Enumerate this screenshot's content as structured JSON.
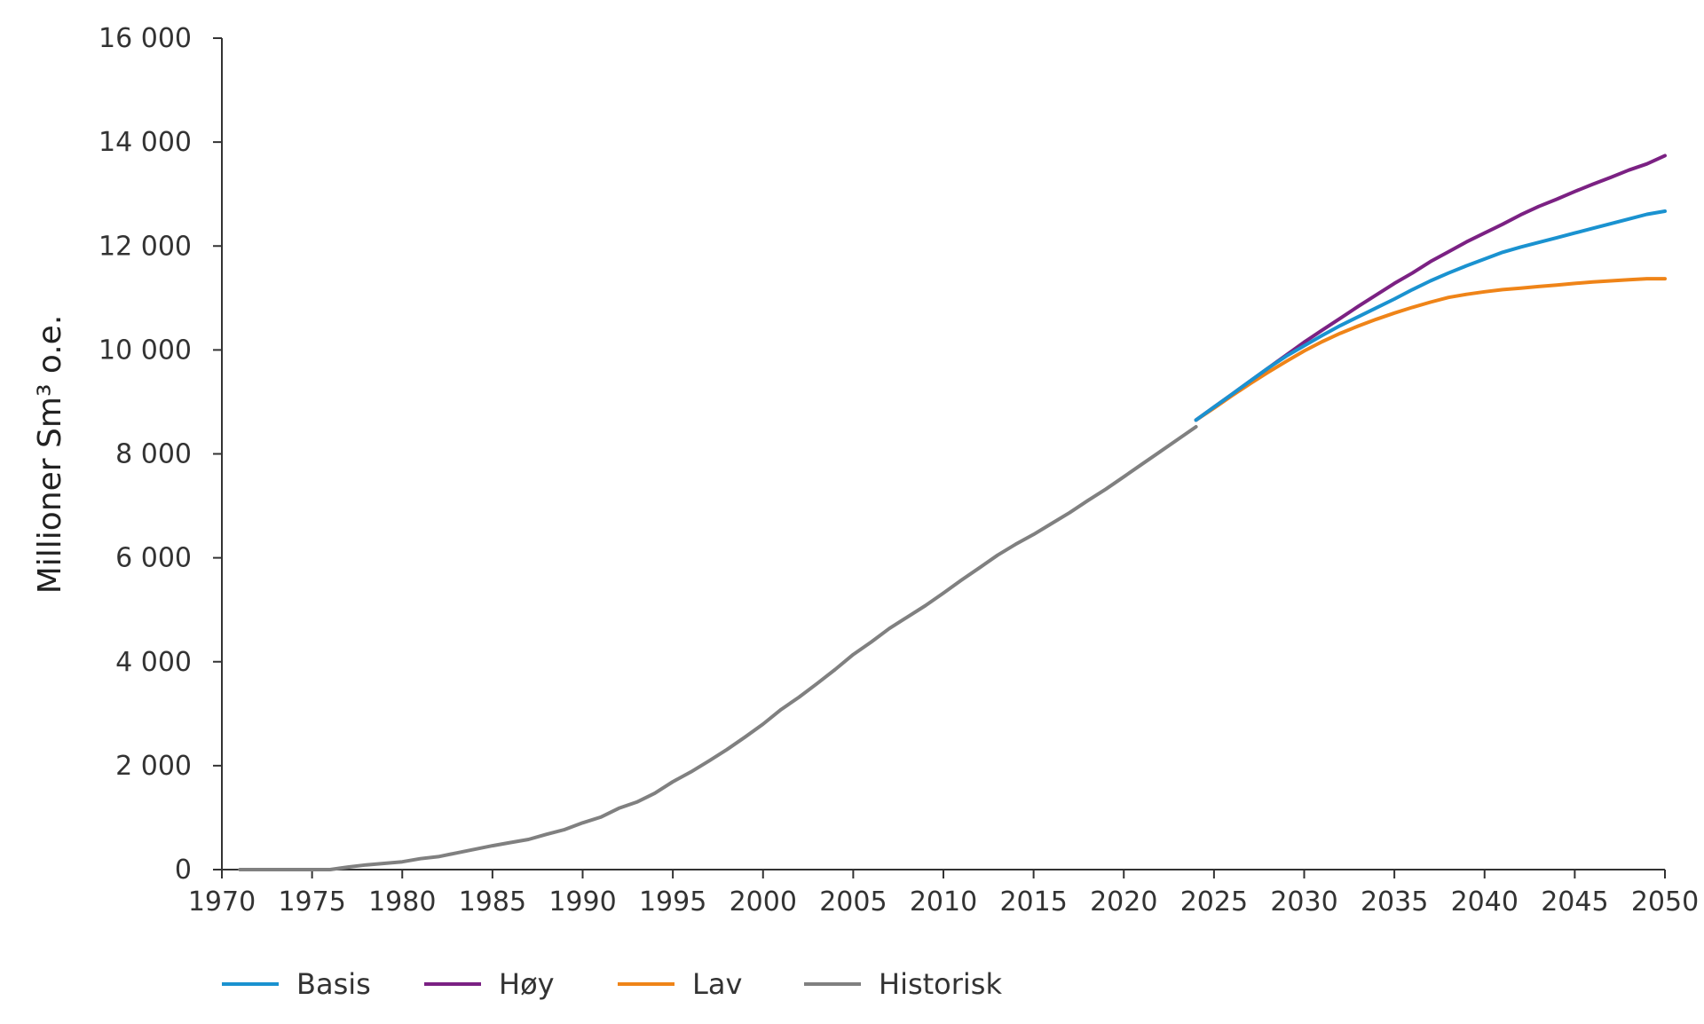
{
  "chart_data": {
    "type": "line",
    "title": "",
    "xlabel": "",
    "ylabel": "Millioner Sm³ o.e.",
    "xlim": [
      1970,
      2050
    ],
    "ylim": [
      0,
      16000
    ],
    "x_ticks": [
      1970,
      1975,
      1980,
      1985,
      1990,
      1995,
      2000,
      2005,
      2010,
      2015,
      2020,
      2025,
      2030,
      2035,
      2040,
      2045,
      2050
    ],
    "y_ticks": [
      0,
      2000,
      4000,
      6000,
      8000,
      10000,
      12000,
      14000,
      16000
    ],
    "y_tick_labels": [
      "0",
      "2 000",
      "4 000",
      "6 000",
      "8 000",
      "10 000",
      "12 000",
      "14 000",
      "16 000"
    ],
    "grid": false,
    "legend_position": "bottom",
    "series": [
      {
        "name": "Historisk",
        "color": "#808080",
        "x": [
          1971,
          1972,
          1973,
          1974,
          1975,
          1976,
          1977,
          1978,
          1979,
          1980,
          1981,
          1982,
          1983,
          1984,
          1985,
          1986,
          1987,
          1988,
          1989,
          1990,
          1991,
          1992,
          1993,
          1994,
          1995,
          1996,
          1997,
          1998,
          1999,
          2000,
          2001,
          2002,
          2003,
          2004,
          2005,
          2006,
          2007,
          2008,
          2009,
          2010,
          2011,
          2012,
          2013,
          2014,
          2015,
          2016,
          2017,
          2018,
          2019,
          2020,
          2021,
          2022,
          2023,
          2024
        ],
        "values": [
          0,
          0,
          0,
          0,
          0,
          0,
          50,
          90,
          120,
          150,
          210,
          250,
          320,
          390,
          460,
          520,
          580,
          680,
          770,
          900,
          1010,
          1180,
          1300,
          1470,
          1690,
          1880,
          2090,
          2310,
          2550,
          2800,
          3080,
          3320,
          3580,
          3850,
          4140,
          4380,
          4640,
          4860,
          5080,
          5320,
          5570,
          5810,
          6050,
          6260,
          6450,
          6660,
          6870,
          7100,
          7320,
          7560,
          7800,
          8040,
          8280,
          8520
        ]
      },
      {
        "name": "Basis",
        "color": "#1a92d0",
        "x": [
          2024,
          2025,
          2026,
          2027,
          2028,
          2029,
          2030,
          2031,
          2032,
          2033,
          2034,
          2035,
          2036,
          2037,
          2038,
          2039,
          2040,
          2041,
          2042,
          2043,
          2044,
          2045,
          2046,
          2047,
          2048,
          2049,
          2050
        ],
        "values": [
          8650,
          8900,
          9150,
          9400,
          9650,
          9880,
          10080,
          10280,
          10470,
          10640,
          10810,
          10980,
          11160,
          11330,
          11480,
          11620,
          11750,
          11880,
          11980,
          12070,
          12160,
          12250,
          12340,
          12430,
          12520,
          12610,
          12670
        ]
      },
      {
        "name": "Høy",
        "color": "#7b2183",
        "x": [
          2024,
          2025,
          2026,
          2027,
          2028,
          2029,
          2030,
          2031,
          2032,
          2033,
          2034,
          2035,
          2036,
          2037,
          2038,
          2039,
          2040,
          2041,
          2042,
          2043,
          2044,
          2045,
          2046,
          2047,
          2048,
          2049,
          2050
        ],
        "values": [
          8650,
          8900,
          9150,
          9400,
          9650,
          9900,
          10150,
          10380,
          10610,
          10840,
          11060,
          11280,
          11480,
          11700,
          11890,
          12080,
          12250,
          12420,
          12600,
          12760,
          12900,
          13050,
          13190,
          13320,
          13460,
          13580,
          13740
        ]
      },
      {
        "name": "Lav",
        "color": "#ef8418",
        "x": [
          2024,
          2025,
          2026,
          2027,
          2028,
          2029,
          2030,
          2031,
          2032,
          2033,
          2034,
          2035,
          2036,
          2037,
          2038,
          2039,
          2040,
          2041,
          2042,
          2043,
          2044,
          2045,
          2046,
          2047,
          2048,
          2049,
          2050
        ],
        "values": [
          8650,
          8880,
          9120,
          9350,
          9570,
          9780,
          9980,
          10160,
          10320,
          10460,
          10590,
          10710,
          10820,
          10920,
          11010,
          11070,
          11120,
          11160,
          11190,
          11220,
          11250,
          11280,
          11310,
          11330,
          11350,
          11370,
          11370
        ]
      }
    ],
    "legend": [
      "Basis",
      "Høy",
      "Lav",
      "Historisk"
    ]
  }
}
